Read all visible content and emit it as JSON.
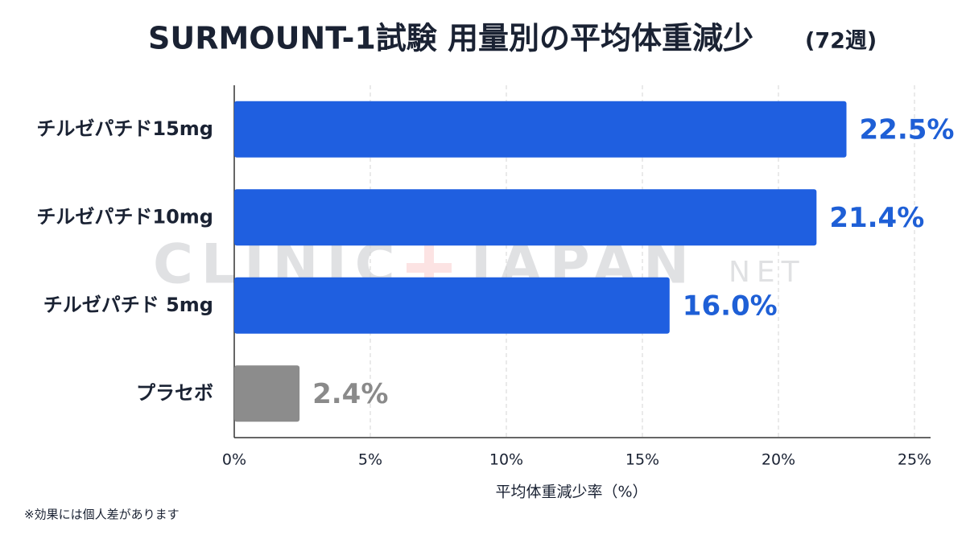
{
  "chart_data": {
    "type": "hbar",
    "title": "SURMOUNT-1試験 用量別の平均体重減少",
    "title_suffix": "(72週)",
    "categories": [
      "チルゼパチド15mg",
      "チルゼパチド10mg",
      "チルゼパチド 5mg",
      "プラセボ"
    ],
    "values": [
      22.5,
      21.4,
      16.0,
      2.4
    ],
    "value_labels": [
      "22.5%",
      "21.4%",
      "16.0%",
      "2.4%"
    ],
    "colors": [
      "#1f5fe0",
      "#1f5fe0",
      "#1f5fe0",
      "#8c8c8c"
    ],
    "label_colors": [
      "#1e5fd6",
      "#1e5fd6",
      "#1e5fd6",
      "#8a8a8a"
    ],
    "xlim": [
      0,
      25
    ],
    "xticks": [
      {
        "value": 0,
        "label": "0%"
      },
      {
        "value": 5,
        "label": "5%"
      },
      {
        "value": 10,
        "label": "10%"
      },
      {
        "value": 15,
        "label": "15%"
      },
      {
        "value": 20,
        "label": "20%"
      },
      {
        "value": 25,
        "label": "25%"
      }
    ],
    "xlabel": "平均体重減少率（%）",
    "grid": true,
    "note": "※効果には個人差があります",
    "watermark": {
      "left": "CLINIC",
      "right": "JAPAN",
      "suffix": "NET"
    }
  }
}
